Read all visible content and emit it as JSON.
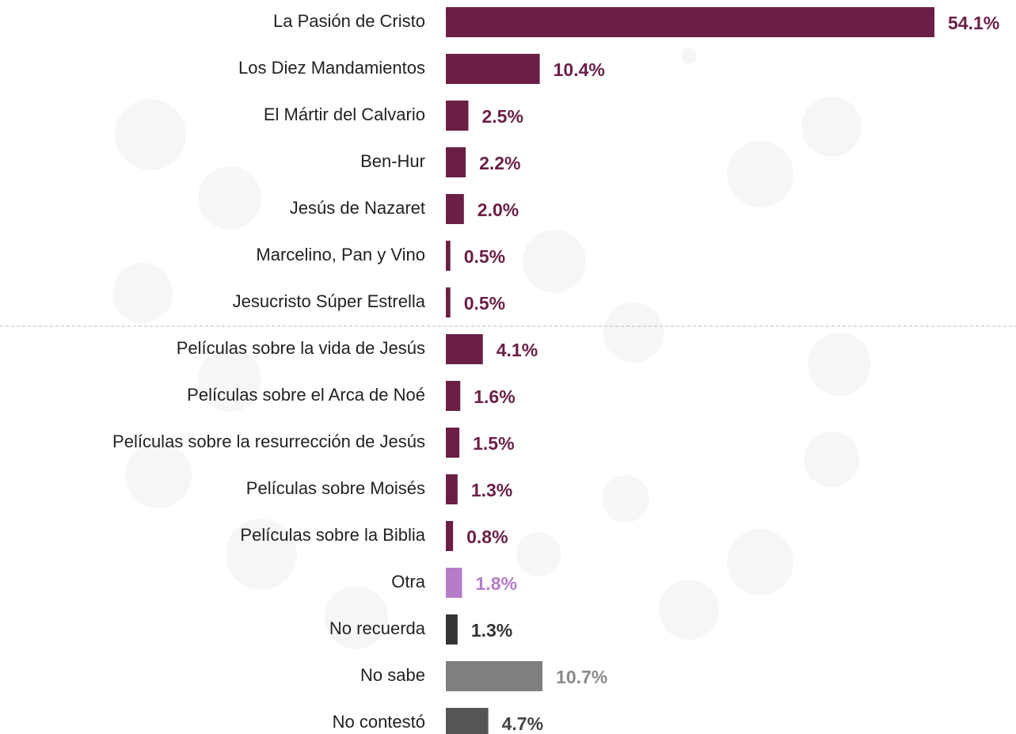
{
  "chart_data": {
    "type": "bar",
    "orientation": "horizontal",
    "categories": [
      "La Pasión de Cristo",
      "Los Diez Mandamientos",
      "El Mártir del Calvario",
      "Ben-Hur",
      "Jesús de Nazaret",
      "Marcelino, Pan y Vino",
      "Jesucristo Súper Estrella",
      "Películas sobre la vida de Jesús",
      "Películas sobre el Arca de Noé",
      "Películas sobre la resurrección de Jesús",
      "Películas sobre Moisés",
      "Películas sobre la Biblia",
      "Otra",
      "No recuerda",
      "No sabe",
      "No contestó"
    ],
    "values": [
      54.1,
      10.4,
      2.5,
      2.2,
      2.0,
      0.5,
      0.5,
      4.1,
      1.6,
      1.5,
      1.3,
      0.8,
      1.8,
      1.3,
      10.7,
      4.7
    ],
    "value_labels": [
      "54.1%",
      "10.4%",
      "2.5%",
      "2.2%",
      "2.0%",
      "0.5%",
      "0.5%",
      "4.1%",
      "1.6%",
      "1.5%",
      "1.3%",
      "0.8%",
      "1.8%",
      "1.3%",
      "10.7%",
      "4.7%"
    ],
    "colors": [
      "#6b1f47",
      "#6b1f47",
      "#6b1f47",
      "#6b1f47",
      "#6b1f47",
      "#6b1f47",
      "#6b1f47",
      "#6b1f47",
      "#6b1f47",
      "#6b1f47",
      "#6b1f47",
      "#6b1f47",
      "#b57cc9",
      "#333333",
      "#808080",
      "#555555"
    ],
    "label_colors": [
      "#6b1f47",
      "#6b1f47",
      "#6b1f47",
      "#6b1f47",
      "#6b1f47",
      "#6b1f47",
      "#6b1f47",
      "#6b1f47",
      "#6b1f47",
      "#6b1f47",
      "#6b1f47",
      "#6b1f47",
      "#b57cc9",
      "#333333",
      "#8a8a8a",
      "#444444"
    ]
  }
}
